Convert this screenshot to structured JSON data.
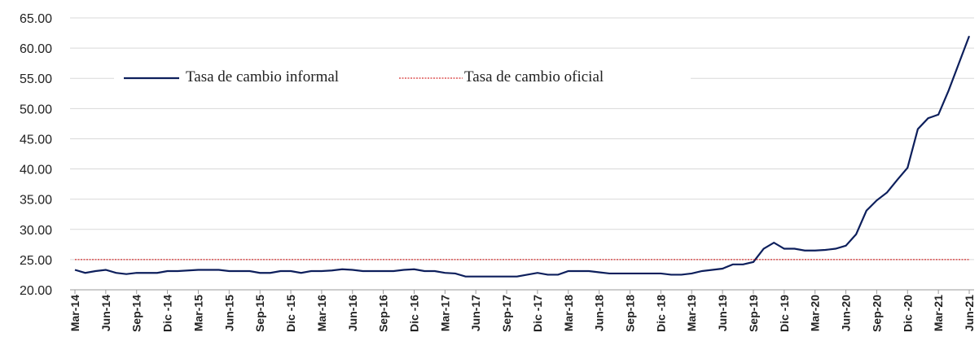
{
  "chart_data": {
    "type": "line",
    "categories": [
      "Mar-14",
      null,
      null,
      "Jun-14",
      null,
      null,
      "Sep-14",
      null,
      null,
      "Dic -14",
      null,
      null,
      "Mar-15",
      null,
      null,
      "Jun-15",
      null,
      null,
      "Sep-15",
      null,
      null,
      "Dic -15",
      null,
      null,
      "Mar-16",
      null,
      null,
      "Jun-16",
      null,
      null,
      "Sep-16",
      null,
      null,
      "Dic -16",
      null,
      null,
      "Mar-17",
      null,
      null,
      "Jun-17",
      null,
      null,
      "Sep-17",
      null,
      null,
      "Dic -17",
      null,
      null,
      "Mar-18",
      null,
      null,
      "Jun-18",
      null,
      null,
      "Sep-18",
      null,
      null,
      "Dic -18",
      null,
      null,
      "Mar-19",
      null,
      null,
      "Jun-19",
      null,
      null,
      "Sep-19",
      null,
      null,
      "Dic -19",
      null,
      null,
      "Mar-20",
      null,
      null,
      "Jun-20",
      null,
      null,
      "Sep-20",
      null,
      null,
      "Dic -20",
      null,
      null,
      "Mar-21",
      null,
      null,
      "Jun-21"
    ],
    "series": [
      {
        "name": "Tasa de cambio informal",
        "color": "#0d1f5c",
        "style": "solid",
        "values": [
          23.3,
          22.8,
          23.1,
          23.3,
          22.8,
          22.6,
          22.8,
          22.8,
          22.8,
          23.1,
          23.1,
          23.2,
          23.3,
          23.3,
          23.3,
          23.1,
          23.1,
          23.1,
          22.8,
          22.8,
          23.1,
          23.1,
          22.8,
          23.1,
          23.1,
          23.2,
          23.4,
          23.3,
          23.1,
          23.1,
          23.1,
          23.1,
          23.3,
          23.4,
          23.1,
          23.1,
          22.8,
          22.7,
          22.2,
          22.2,
          22.2,
          22.2,
          22.2,
          22.2,
          22.5,
          22.8,
          22.5,
          22.5,
          23.1,
          23.1,
          23.1,
          22.9,
          22.7,
          22.7,
          22.7,
          22.7,
          22.7,
          22.7,
          22.5,
          22.5,
          22.7,
          23.1,
          23.3,
          23.5,
          24.2,
          24.2,
          24.6,
          26.8,
          27.8,
          26.8,
          26.8,
          26.5,
          26.5,
          26.6,
          26.8,
          27.3,
          29.2,
          33.1,
          34.8,
          36.1,
          38.2,
          40.2,
          46.6,
          48.4,
          49.0,
          53.0,
          57.5,
          62.0
        ]
      },
      {
        "name": "Tasa de cambio oficial",
        "color": "#cc0000",
        "style": "dotted",
        "values": [
          25,
          25,
          25,
          25,
          25,
          25,
          25,
          25,
          25,
          25,
          25,
          25,
          25,
          25,
          25,
          25,
          25,
          25,
          25,
          25,
          25,
          25,
          25,
          25,
          25,
          25,
          25,
          25,
          25,
          25,
          25,
          25,
          25,
          25,
          25,
          25,
          25,
          25,
          25,
          25,
          25,
          25,
          25,
          25,
          25,
          25,
          25,
          25,
          25,
          25,
          25,
          25,
          25,
          25,
          25,
          25,
          25,
          25,
          25,
          25,
          25,
          25,
          25,
          25,
          25,
          25,
          25,
          25,
          25,
          25,
          25,
          25,
          25,
          25,
          25,
          25,
          25,
          25,
          25,
          25,
          25,
          25,
          25,
          25,
          25,
          25,
          25,
          25
        ]
      }
    ],
    "ylim": [
      20,
      65
    ],
    "yticks": [
      {
        "value": 20,
        "label": "20.00"
      },
      {
        "value": 25,
        "label": "25.00"
      },
      {
        "value": 30,
        "label": "30.00"
      },
      {
        "value": 35,
        "label": "35.00"
      },
      {
        "value": 40,
        "label": "40.00"
      },
      {
        "value": 45,
        "label": "45.00"
      },
      {
        "value": 50,
        "label": "50.00"
      },
      {
        "value": 55,
        "label": "55.00"
      },
      {
        "value": 60,
        "label": "60.00"
      },
      {
        "value": 65,
        "label": "65.00"
      }
    ],
    "grid": true
  }
}
